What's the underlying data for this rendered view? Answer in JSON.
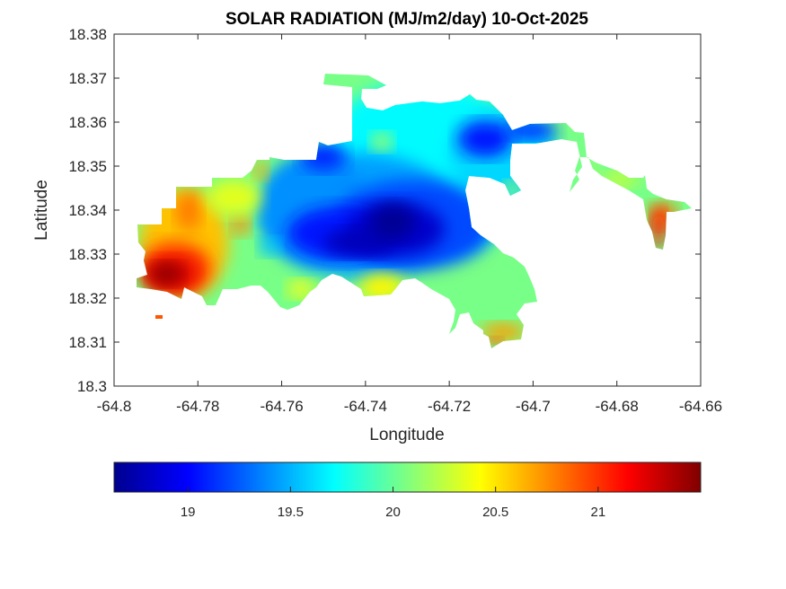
{
  "chart_data": {
    "type": "heatmap",
    "title": "SOLAR RADIATION (MJ/m2/day) 10-Oct-2025",
    "xlabel": "Longitude",
    "ylabel": "Latitude",
    "xlim": [
      -64.8,
      -64.66
    ],
    "ylim": [
      18.3,
      18.38
    ],
    "xticks": [
      -64.8,
      -64.78,
      -64.76,
      -64.74,
      -64.72,
      -64.7,
      -64.68,
      -64.66
    ],
    "xtick_labels": [
      "-64.8",
      "-64.78",
      "-64.76",
      "-64.74",
      "-64.72",
      "-64.7",
      "-64.68",
      "-64.66"
    ],
    "yticks": [
      18.3,
      18.31,
      18.32,
      18.33,
      18.34,
      18.35,
      18.36,
      18.37,
      18.38
    ],
    "ytick_labels": [
      "18.3",
      "18.31",
      "18.32",
      "18.33",
      "18.34",
      "18.35",
      "18.36",
      "18.37",
      "18.38"
    ],
    "grid": false,
    "colormap": "jet",
    "colorbar": {
      "location": "bottom",
      "range": [
        18.64,
        21.5
      ],
      "ticks": [
        19,
        19.5,
        20,
        20.5,
        21
      ],
      "tick_labels": [
        "19",
        "19.5",
        "20",
        "20.5",
        "21"
      ]
    },
    "hotspots": [
      {
        "name": "southwest-max",
        "lon": -64.787,
        "lat": 18.325,
        "value": 21.45
      },
      {
        "name": "west-ridge",
        "lon": -64.784,
        "lat": 18.341,
        "value": 20.8
      },
      {
        "name": "west-center-spot",
        "lon": -64.771,
        "lat": 18.337,
        "value": 20.75
      },
      {
        "name": "north-west-spot",
        "lon": -64.765,
        "lat": 18.349,
        "value": 20.7
      },
      {
        "name": "central-min",
        "lon": -64.734,
        "lat": 18.335,
        "value": 18.7
      },
      {
        "name": "central-min-west",
        "lon": -64.742,
        "lat": 18.332,
        "value": 18.75
      },
      {
        "name": "northeast-low",
        "lon": -64.704,
        "lat": 18.356,
        "value": 19.1
      },
      {
        "name": "north-yellow",
        "lon": -64.738,
        "lat": 18.355,
        "value": 20.2
      },
      {
        "name": "southeast-tip",
        "lon": -64.705,
        "lat": 18.311,
        "value": 20.9
      },
      {
        "name": "south-yellow",
        "lon": -64.737,
        "lat": 18.322,
        "value": 20.4
      },
      {
        "name": "far-east-cay",
        "lon": -64.668,
        "lat": 18.337,
        "value": 21.05
      }
    ]
  }
}
